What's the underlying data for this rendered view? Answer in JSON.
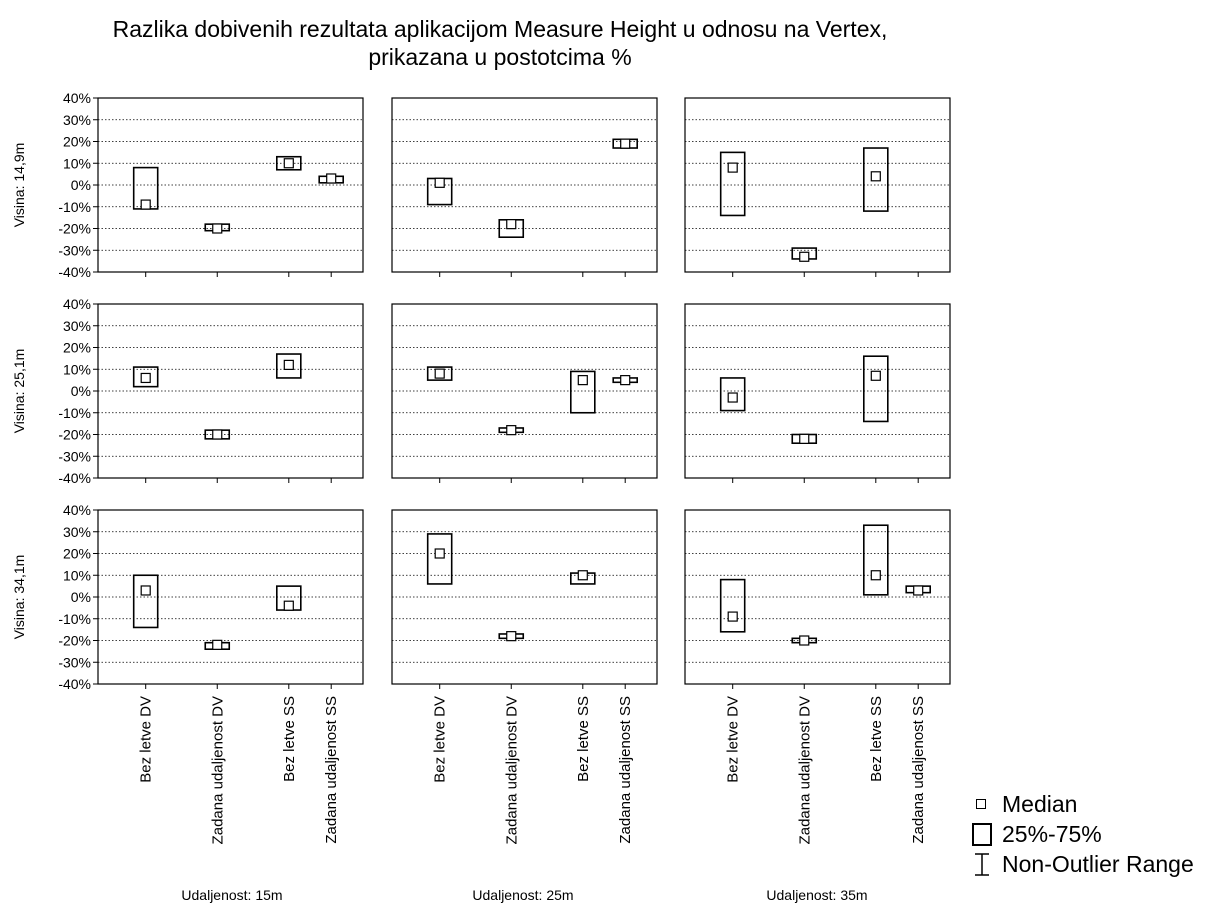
{
  "chart_data": {
    "type": "boxplot",
    "title_lines": [
      "Razlika dobivenih rezultata aplikacijom Measure Height u odnosu na Vertex,",
      "prikazana u postotcima %"
    ],
    "ylim": [
      -40,
      40
    ],
    "yticks": [
      "40%",
      "30%",
      "20%",
      "10%",
      "0%",
      "-10%",
      "-20%",
      "-30%",
      "-40%"
    ],
    "categories": [
      "Bez letve DV",
      "Zadana udaljenost DV",
      "Bez letve SS",
      "Zadana udaljenost SS"
    ],
    "column_labels": [
      "Udaljenost: 15m",
      "Udaljenost: 25m",
      "Udaljenost: 35m"
    ],
    "row_labels": [
      "Visina: 14,9m",
      "Visina: 25,1m",
      "Visina: 34,1m"
    ],
    "legend": [
      {
        "symbol": "median",
        "label": "Median"
      },
      {
        "symbol": "box",
        "label": "25%-75%"
      },
      {
        "symbol": "range",
        "label": "Non-Outlier Range"
      }
    ],
    "panels": [
      {
        "row": 0,
        "col": 0,
        "boxes": [
          {
            "q1": -11,
            "q3": 8,
            "median": -9
          },
          {
            "q1": -21,
            "q3": -18,
            "median": -20
          },
          {
            "q1": 7,
            "q3": 13,
            "median": 10
          },
          {
            "q1": 1,
            "q3": 4,
            "median": 3
          }
        ]
      },
      {
        "row": 0,
        "col": 1,
        "boxes": [
          {
            "q1": -9,
            "q3": 3,
            "median": 1
          },
          {
            "q1": -24,
            "q3": -16,
            "median": -18
          },
          {
            "q1": null,
            "q3": null,
            "median": null
          },
          {
            "q1": 17,
            "q3": 21,
            "median": 19
          }
        ]
      },
      {
        "row": 0,
        "col": 2,
        "boxes": [
          {
            "q1": -14,
            "q3": 15,
            "median": 8
          },
          {
            "q1": -34,
            "q3": -29,
            "median": -33
          },
          {
            "q1": -12,
            "q3": 17,
            "median": 4
          },
          {
            "q1": null,
            "q3": null,
            "median": null
          }
        ]
      },
      {
        "row": 1,
        "col": 0,
        "boxes": [
          {
            "q1": 2,
            "q3": 11,
            "median": 6
          },
          {
            "q1": -22,
            "q3": -18,
            "median": -20
          },
          {
            "q1": 6,
            "q3": 17,
            "median": 12
          },
          {
            "q1": null,
            "q3": null,
            "median": null
          }
        ]
      },
      {
        "row": 1,
        "col": 1,
        "boxes": [
          {
            "q1": 5,
            "q3": 11,
            "median": 8
          },
          {
            "q1": -19,
            "q3": -17,
            "median": -18
          },
          {
            "q1": -10,
            "q3": 9,
            "median": 5
          },
          {
            "q1": 4,
            "q3": 6,
            "median": 5
          }
        ]
      },
      {
        "row": 1,
        "col": 2,
        "boxes": [
          {
            "q1": -9,
            "q3": 6,
            "median": -3
          },
          {
            "q1": -24,
            "q3": -20,
            "median": -22
          },
          {
            "q1": -14,
            "q3": 16,
            "median": 7
          },
          {
            "q1": null,
            "q3": null,
            "median": null
          }
        ]
      },
      {
        "row": 2,
        "col": 0,
        "boxes": [
          {
            "q1": -14,
            "q3": 10,
            "median": 3
          },
          {
            "q1": -24,
            "q3": -21,
            "median": -22
          },
          {
            "q1": -6,
            "q3": 5,
            "median": -4
          },
          {
            "q1": null,
            "q3": null,
            "median": null
          }
        ]
      },
      {
        "row": 2,
        "col": 1,
        "boxes": [
          {
            "q1": 6,
            "q3": 29,
            "median": 20
          },
          {
            "q1": -19,
            "q3": -17,
            "median": -18
          },
          {
            "q1": 6,
            "q3": 11,
            "median": 10
          },
          {
            "q1": null,
            "q3": null,
            "median": null
          }
        ]
      },
      {
        "row": 2,
        "col": 2,
        "boxes": [
          {
            "q1": -16,
            "q3": 8,
            "median": -9
          },
          {
            "q1": -21,
            "q3": -19,
            "median": -20
          },
          {
            "q1": 1,
            "q3": 33,
            "median": 10
          },
          {
            "q1": 2,
            "q3": 5,
            "median": 3
          }
        ]
      }
    ]
  }
}
